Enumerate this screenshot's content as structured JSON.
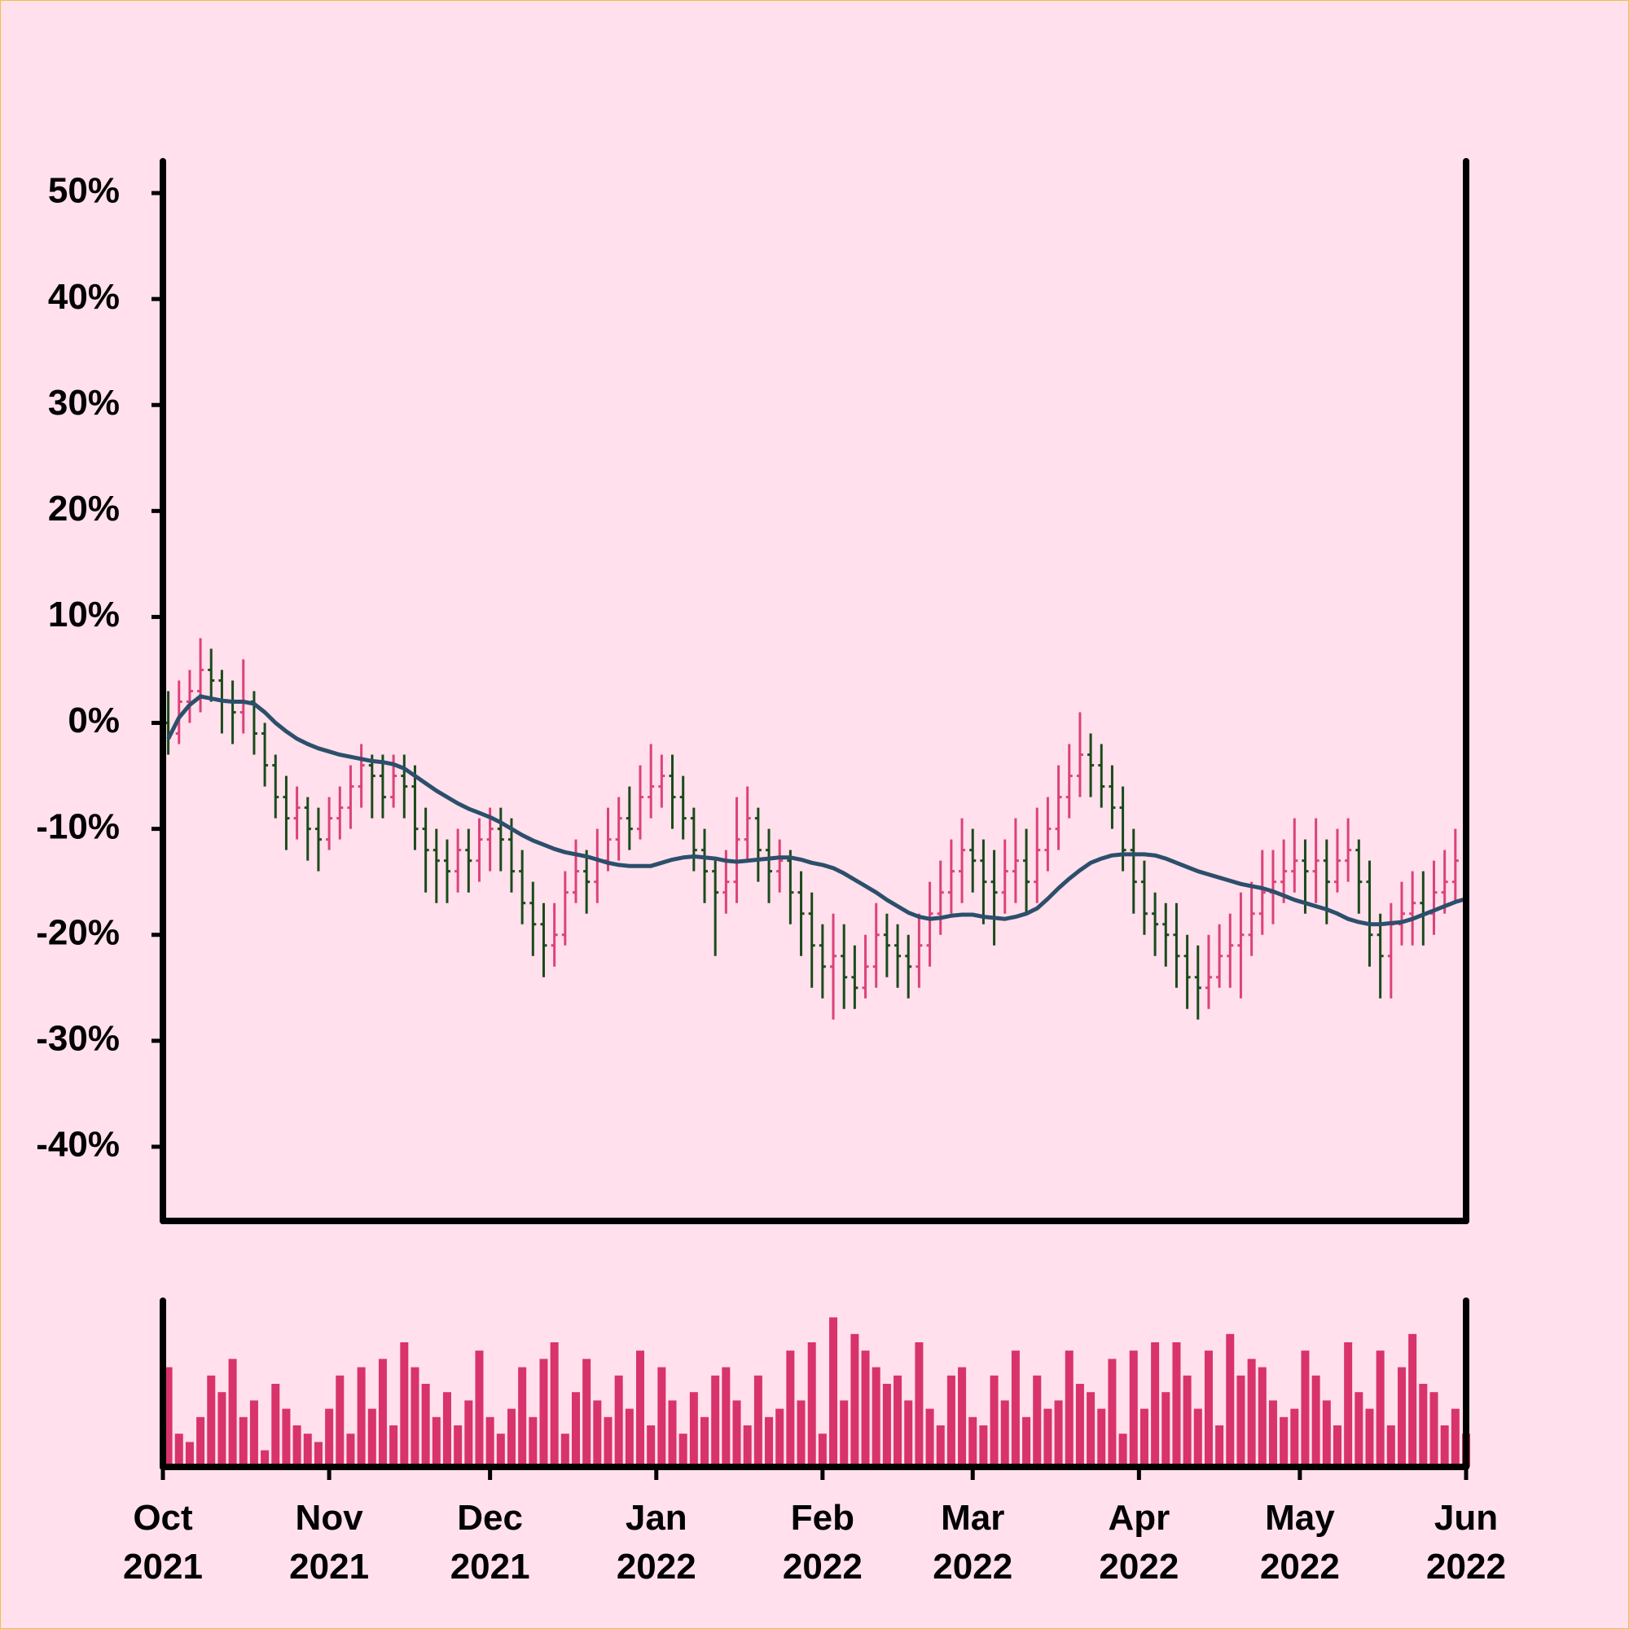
{
  "chart_data": {
    "type": "ohlc",
    "x": [
      "2021-10-01",
      "2021-10-03",
      "2021-10-05",
      "2021-10-07",
      "2021-10-09",
      "2021-10-11",
      "2021-10-13",
      "2021-10-15",
      "2021-10-17",
      "2021-10-19",
      "2021-10-21",
      "2021-10-23",
      "2021-10-25",
      "2021-10-27",
      "2021-10-29",
      "2021-10-31",
      "2021-11-02",
      "2021-11-04",
      "2021-11-06",
      "2021-11-08",
      "2021-11-10",
      "2021-11-12",
      "2021-11-14",
      "2021-11-16",
      "2021-11-18",
      "2021-11-20",
      "2021-11-22",
      "2021-11-24",
      "2021-11-26",
      "2021-11-28",
      "2021-11-30",
      "2021-12-02",
      "2021-12-04",
      "2021-12-06",
      "2021-12-08",
      "2021-12-10",
      "2021-12-12",
      "2021-12-14",
      "2021-12-16",
      "2021-12-18",
      "2021-12-20",
      "2021-12-22",
      "2021-12-24",
      "2021-12-26",
      "2021-12-28",
      "2021-12-30",
      "2022-01-01",
      "2022-01-03",
      "2022-01-05",
      "2022-01-07",
      "2022-01-09",
      "2022-01-11",
      "2022-01-13",
      "2022-01-15",
      "2022-01-17",
      "2022-01-19",
      "2022-01-21",
      "2022-01-23",
      "2022-01-25",
      "2022-01-27",
      "2022-01-29",
      "2022-01-31",
      "2022-02-02",
      "2022-02-04",
      "2022-02-06",
      "2022-02-08",
      "2022-02-10",
      "2022-02-12",
      "2022-02-14",
      "2022-02-16",
      "2022-02-18",
      "2022-02-20",
      "2022-02-22",
      "2022-02-24",
      "2022-02-26",
      "2022-02-28",
      "2022-03-02",
      "2022-03-04",
      "2022-03-06",
      "2022-03-08",
      "2022-03-10",
      "2022-03-12",
      "2022-03-14",
      "2022-03-16",
      "2022-03-18",
      "2022-03-20",
      "2022-03-22",
      "2022-03-24",
      "2022-03-26",
      "2022-03-28",
      "2022-03-30",
      "2022-04-01",
      "2022-04-03",
      "2022-04-05",
      "2022-04-07",
      "2022-04-09",
      "2022-04-11",
      "2022-04-13",
      "2022-04-15",
      "2022-04-17",
      "2022-04-19",
      "2022-04-21",
      "2022-04-23",
      "2022-04-25",
      "2022-04-27",
      "2022-04-29",
      "2022-05-01",
      "2022-05-03",
      "2022-05-05",
      "2022-05-07",
      "2022-05-09",
      "2022-05-11",
      "2022-05-13",
      "2022-05-15",
      "2022-05-17",
      "2022-05-19",
      "2022-05-21",
      "2022-05-23",
      "2022-05-25",
      "2022-05-27",
      "2022-05-29",
      "2022-05-31"
    ],
    "open": [
      0,
      -1,
      2,
      3,
      5,
      4,
      2,
      1,
      2,
      -1,
      -4,
      -7,
      -9,
      -8,
      -10,
      -11,
      -9,
      -8,
      -6,
      -4,
      -5,
      -7,
      -5,
      -6,
      -10,
      -12,
      -13,
      -14,
      -12,
      -13,
      -11,
      -10,
      -11,
      -14,
      -17,
      -19,
      -21,
      -20,
      -16,
      -14,
      -15,
      -13,
      -11,
      -9,
      -10,
      -7,
      -6,
      -5,
      -7,
      -9,
      -12,
      -14,
      -16,
      -15,
      -11,
      -9,
      -12,
      -14,
      -13,
      -16,
      -18,
      -21,
      -23,
      -22,
      -24,
      -25,
      -23,
      -20,
      -21,
      -22,
      -23,
      -21,
      -18,
      -16,
      -14,
      -12,
      -13,
      -15,
      -16,
      -14,
      -13,
      -15,
      -12,
      -10,
      -7,
      -5,
      -3,
      -4,
      -6,
      -8,
      -12,
      -15,
      -18,
      -19,
      -20,
      -22,
      -24,
      -25,
      -24,
      -22,
      -21,
      -20,
      -18,
      -16,
      -15,
      -14,
      -13,
      -14,
      -13,
      -15,
      -13,
      -12,
      -15,
      -20,
      -22,
      -19,
      -18,
      -17,
      -18,
      -16,
      -15,
      -13
    ],
    "high": [
      3,
      4,
      5,
      8,
      7,
      5,
      4,
      6,
      3,
      0,
      -3,
      -5,
      -6,
      -7,
      -8,
      -7,
      -6,
      -4,
      -2,
      -3,
      -3,
      -3,
      -3,
      -4,
      -8,
      -10,
      -11,
      -10,
      -10,
      -9,
      -8,
      -8,
      -9,
      -12,
      -15,
      -17,
      -17,
      -14,
      -11,
      -12,
      -10,
      -8,
      -7,
      -6,
      -4,
      -2,
      -3,
      -3,
      -5,
      -8,
      -10,
      -13,
      -12,
      -7,
      -6,
      -8,
      -10,
      -11,
      -12,
      -14,
      -16,
      -19,
      -18,
      -19,
      -21,
      -20,
      -17,
      -18,
      -19,
      -20,
      -18,
      -15,
      -13,
      -11,
      -9,
      -10,
      -11,
      -12,
      -11,
      -9,
      -10,
      -8,
      -7,
      -4,
      -2,
      1,
      -1,
      -2,
      -4,
      -6,
      -10,
      -13,
      -16,
      -17,
      -17,
      -20,
      -21,
      -20,
      -19,
      -18,
      -16,
      -15,
      -12,
      -12,
      -11,
      -9,
      -11,
      -9,
      -11,
      -10,
      -9,
      -11,
      -13,
      -18,
      -17,
      -15,
      -14,
      -14,
      -13,
      -12,
      -10,
      -7
    ],
    "low": [
      -3,
      -2,
      0,
      1,
      2,
      -1,
      -2,
      -1,
      -3,
      -6,
      -9,
      -12,
      -11,
      -13,
      -14,
      -12,
      -11,
      -10,
      -8,
      -9,
      -9,
      -8,
      -9,
      -12,
      -16,
      -17,
      -17,
      -16,
      -16,
      -15,
      -14,
      -14,
      -16,
      -19,
      -22,
      -24,
      -23,
      -21,
      -17,
      -18,
      -17,
      -14,
      -13,
      -12,
      -11,
      -9,
      -8,
      -10,
      -11,
      -14,
      -17,
      -22,
      -18,
      -17,
      -13,
      -15,
      -17,
      -16,
      -19,
      -22,
      -25,
      -26,
      -28,
      -27,
      -27,
      -26,
      -25,
      -24,
      -25,
      -26,
      -25,
      -23,
      -20,
      -18,
      -17,
      -16,
      -19,
      -21,
      -18,
      -17,
      -18,
      -17,
      -14,
      -12,
      -9,
      -7,
      -7,
      -8,
      -10,
      -14,
      -18,
      -20,
      -22,
      -23,
      -25,
      -27,
      -28,
      -27,
      -25,
      -25,
      -26,
      -22,
      -20,
      -19,
      -17,
      -16,
      -18,
      -17,
      -19,
      -16,
      -15,
      -18,
      -23,
      -26,
      -26,
      -21,
      -21,
      -21,
      -20,
      -18,
      -17,
      -13
    ],
    "close": [
      -1,
      2,
      3,
      5,
      4,
      2,
      1,
      2,
      -1,
      -4,
      -7,
      -9,
      -8,
      -10,
      -11,
      -9,
      -8,
      -6,
      -4,
      -5,
      -7,
      -5,
      -6,
      -10,
      -12,
      -13,
      -14,
      -12,
      -13,
      -11,
      -10,
      -11,
      -14,
      -17,
      -19,
      -21,
      -20,
      -16,
      -14,
      -15,
      -13,
      -11,
      -9,
      -10,
      -7,
      -6,
      -5,
      -7,
      -9,
      -12,
      -14,
      -16,
      -15,
      -11,
      -9,
      -12,
      -14,
      -13,
      -16,
      -18,
      -21,
      -23,
      -22,
      -24,
      -25,
      -23,
      -20,
      -21,
      -22,
      -23,
      -21,
      -18,
      -16,
      -14,
      -12,
      -13,
      -15,
      -16,
      -14,
      -13,
      -15,
      -12,
      -10,
      -7,
      -5,
      -3,
      -4,
      -6,
      -8,
      -12,
      -15,
      -18,
      -19,
      -20,
      -22,
      -24,
      -25,
      -24,
      -22,
      -21,
      -20,
      -18,
      -16,
      -15,
      -14,
      -13,
      -14,
      -13,
      -15,
      -13,
      -12,
      -15,
      -20,
      -22,
      -19,
      -18,
      -17,
      -18,
      -16,
      -15,
      -13,
      -11
    ],
    "moving_average": [
      -1.5,
      0.5,
      1.7,
      2.5,
      2.3,
      2.1,
      2.0,
      2.0,
      1.8,
      1.0,
      0.0,
      -0.8,
      -1.5,
      -2.0,
      -2.4,
      -2.7,
      -3.0,
      -3.2,
      -3.4,
      -3.6,
      -3.7,
      -3.9,
      -4.3,
      -5.0,
      -5.7,
      -6.4,
      -7.0,
      -7.6,
      -8.1,
      -8.5,
      -8.9,
      -9.4,
      -10.0,
      -10.6,
      -11.1,
      -11.5,
      -11.9,
      -12.2,
      -12.4,
      -12.6,
      -12.9,
      -13.2,
      -13.4,
      -13.5,
      -13.5,
      -13.5,
      -13.2,
      -12.9,
      -12.7,
      -12.6,
      -12.7,
      -12.8,
      -13.0,
      -13.1,
      -13.0,
      -12.9,
      -12.8,
      -12.7,
      -12.7,
      -12.9,
      -13.2,
      -13.4,
      -13.7,
      -14.2,
      -14.8,
      -15.4,
      -16.0,
      -16.7,
      -17.3,
      -17.9,
      -18.3,
      -18.5,
      -18.4,
      -18.2,
      -18.1,
      -18.1,
      -18.3,
      -18.4,
      -18.5,
      -18.3,
      -18.0,
      -17.5,
      -16.6,
      -15.6,
      -14.7,
      -13.9,
      -13.2,
      -12.8,
      -12.5,
      -12.4,
      -12.4,
      -12.4,
      -12.5,
      -12.8,
      -13.2,
      -13.6,
      -14.0,
      -14.3,
      -14.6,
      -14.9,
      -15.2,
      -15.4,
      -15.6,
      -15.9,
      -16.3,
      -16.7,
      -17.0,
      -17.3,
      -17.6,
      -18.0,
      -18.5,
      -18.8,
      -19.0,
      -19.0,
      -18.9,
      -18.8,
      -18.5,
      -18.1,
      -17.7,
      -17.3,
      -16.9,
      -16.6
    ],
    "volume": [
      60,
      20,
      15,
      30,
      55,
      45,
      65,
      30,
      40,
      10,
      50,
      35,
      25,
      20,
      15,
      35,
      55,
      20,
      60,
      35,
      65,
      25,
      75,
      60,
      50,
      30,
      45,
      25,
      40,
      70,
      30,
      20,
      35,
      60,
      30,
      65,
      75,
      20,
      45,
      65,
      40,
      30,
      55,
      35,
      70,
      25,
      60,
      40,
      20,
      45,
      30,
      55,
      60,
      40,
      25,
      55,
      30,
      35,
      70,
      40,
      75,
      20,
      90,
      40,
      80,
      70,
      60,
      50,
      55,
      40,
      75,
      35,
      25,
      55,
      60,
      30,
      25,
      55,
      40,
      70,
      30,
      55,
      35,
      40,
      70,
      50,
      45,
      35,
      65,
      20,
      70,
      35,
      75,
      45,
      75,
      55,
      35,
      70,
      25,
      80,
      55,
      65,
      60,
      40,
      30,
      35,
      70,
      55,
      40,
      25,
      75,
      45,
      35,
      70,
      25,
      60,
      80,
      50,
      45,
      25,
      35,
      20
    ],
    "up_color": "#dc4279",
    "down_color": "#1b4a1b",
    "ma_color": "#2c4f6b",
    "volume_color": "#d8336a",
    "xlim": [
      "2021-10-01",
      "2022-06-01"
    ],
    "xticks": [
      {
        "value": "2021-10-01",
        "label": "Oct 2021"
      },
      {
        "value": "2021-11-01",
        "label": "Nov 2021"
      },
      {
        "value": "2021-12-01",
        "label": "Dec 2021"
      },
      {
        "value": "2022-01-01",
        "label": "Jan 2022"
      },
      {
        "value": "2022-02-01",
        "label": "Feb 2022"
      },
      {
        "value": "2022-03-01",
        "label": "Mar 2022"
      },
      {
        "value": "2022-04-01",
        "label": "Apr 2022"
      },
      {
        "value": "2022-05-01",
        "label": "May 2022"
      },
      {
        "value": "2022-06-01",
        "label": "Jun 2022"
      }
    ],
    "ylim": [
      -47,
      53
    ],
    "yticks": [
      {
        "value": -40,
        "label": "-40%"
      },
      {
        "value": -30,
        "label": "-30%"
      },
      {
        "value": -20,
        "label": "-20%"
      },
      {
        "value": -10,
        "label": "-10%"
      },
      {
        "value": 0,
        "label": "0%"
      },
      {
        "value": 10,
        "label": "10%"
      },
      {
        "value": 20,
        "label": "20%"
      },
      {
        "value": 30,
        "label": "30%"
      },
      {
        "value": 40,
        "label": "40%"
      },
      {
        "value": 50,
        "label": "50%"
      }
    ],
    "volume_ylim": [
      0,
      100
    ]
  }
}
